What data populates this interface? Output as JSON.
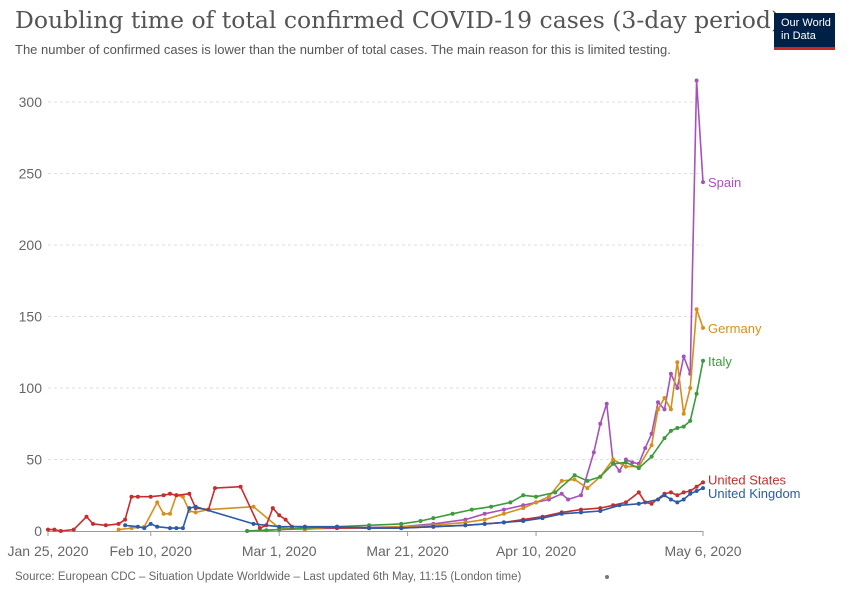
{
  "header": {
    "title": "Doubling time of total confirmed COVID-19 cases (3-day period)",
    "subtitle": "The number of confirmed cases is lower than the number of total cases. The main reason for this is limited testing."
  },
  "logo": {
    "line1": "Our World",
    "line2": "in Data"
  },
  "footer": {
    "source": "Source: European CDC – Situation Update Worldwide – Last updated 6th May, 11:15 (London time)"
  },
  "chart_data": {
    "type": "line",
    "x_axis": {
      "min": "2020-01-25",
      "max": "2020-05-06",
      "ticks": [
        {
          "date": "2020-01-25",
          "label": "Jan 25, 2020"
        },
        {
          "date": "2020-02-10",
          "label": "Feb 10, 2020"
        },
        {
          "date": "2020-03-01",
          "label": "Mar 1, 2020"
        },
        {
          "date": "2020-03-21",
          "label": "Mar 21, 2020"
        },
        {
          "date": "2020-04-10",
          "label": "Apr 10, 2020"
        },
        {
          "date": "2020-05-06",
          "label": "May 6, 2020"
        }
      ]
    },
    "y_axis": {
      "min": 0,
      "max": 300,
      "ticks": [
        0,
        50,
        100,
        150,
        200,
        250,
        300
      ]
    },
    "grid": "horizontal dashed",
    "legend": "line-end labels",
    "series": [
      {
        "name": "Spain",
        "color": "#a652ba",
        "points": [
          [
            "2020-02-25",
            0
          ],
          [
            "2020-03-01",
            1
          ],
          [
            "2020-03-05",
            1.5
          ],
          [
            "2020-03-10",
            2
          ],
          [
            "2020-03-15",
            2.5
          ],
          [
            "2020-03-20",
            3
          ],
          [
            "2020-03-25",
            5
          ],
          [
            "2020-03-30",
            8
          ],
          [
            "2020-04-02",
            12
          ],
          [
            "2020-04-05",
            15
          ],
          [
            "2020-04-08",
            18
          ],
          [
            "2020-04-10",
            20
          ],
          [
            "2020-04-12",
            22
          ],
          [
            "2020-04-14",
            26
          ],
          [
            "2020-04-15",
            22
          ],
          [
            "2020-04-17",
            25
          ],
          [
            "2020-04-19",
            55
          ],
          [
            "2020-04-20",
            75
          ],
          [
            "2020-04-21",
            89
          ],
          [
            "2020-04-22",
            48
          ],
          [
            "2020-04-23",
            42
          ],
          [
            "2020-04-24",
            50
          ],
          [
            "2020-04-25",
            48
          ],
          [
            "2020-04-26",
            47
          ],
          [
            "2020-04-27",
            58
          ],
          [
            "2020-04-28",
            68
          ],
          [
            "2020-04-29",
            90
          ],
          [
            "2020-04-30",
            85
          ],
          [
            "2020-05-01",
            110
          ],
          [
            "2020-05-02",
            100
          ],
          [
            "2020-05-03",
            122
          ],
          [
            "2020-05-04",
            110
          ],
          [
            "2020-05-05",
            315
          ],
          [
            "2020-05-06",
            244
          ]
        ]
      },
      {
        "name": "Germany",
        "color": "#d4901e",
        "points": [
          [
            "2020-02-05",
            1
          ],
          [
            "2020-02-07",
            2
          ],
          [
            "2020-02-09",
            3
          ],
          [
            "2020-02-11",
            20
          ],
          [
            "2020-02-12",
            12
          ],
          [
            "2020-02-13",
            12
          ],
          [
            "2020-02-14",
            25
          ],
          [
            "2020-02-15",
            24
          ],
          [
            "2020-02-16",
            14
          ],
          [
            "2020-02-17",
            13
          ],
          [
            "2020-02-19",
            15
          ],
          [
            "2020-02-26",
            17
          ],
          [
            "2020-03-01",
            2
          ],
          [
            "2020-03-05",
            1
          ],
          [
            "2020-03-10",
            3
          ],
          [
            "2020-03-15",
            2
          ],
          [
            "2020-03-20",
            3
          ],
          [
            "2020-03-25",
            4
          ],
          [
            "2020-03-30",
            6
          ],
          [
            "2020-04-02",
            8
          ],
          [
            "2020-04-05",
            12
          ],
          [
            "2020-04-08",
            16
          ],
          [
            "2020-04-10",
            20
          ],
          [
            "2020-04-12",
            24
          ],
          [
            "2020-04-14",
            35
          ],
          [
            "2020-04-16",
            36
          ],
          [
            "2020-04-18",
            30
          ],
          [
            "2020-04-20",
            38
          ],
          [
            "2020-04-22",
            50
          ],
          [
            "2020-04-24",
            45
          ],
          [
            "2020-04-26",
            45
          ],
          [
            "2020-04-28",
            60
          ],
          [
            "2020-04-29",
            85
          ],
          [
            "2020-04-30",
            93
          ],
          [
            "2020-05-01",
            85
          ],
          [
            "2020-05-02",
            118
          ],
          [
            "2020-05-03",
            82
          ],
          [
            "2020-05-04",
            100
          ],
          [
            "2020-05-05",
            155
          ],
          [
            "2020-05-06",
            142
          ]
        ]
      },
      {
        "name": "Italy",
        "color": "#3c9b3c",
        "points": [
          [
            "2020-02-25",
            0
          ],
          [
            "2020-02-28",
            0.5
          ],
          [
            "2020-03-01",
            1
          ],
          [
            "2020-03-05",
            2
          ],
          [
            "2020-03-10",
            3
          ],
          [
            "2020-03-15",
            4
          ],
          [
            "2020-03-20",
            5
          ],
          [
            "2020-03-23",
            7
          ],
          [
            "2020-03-25",
            9
          ],
          [
            "2020-03-28",
            12
          ],
          [
            "2020-03-31",
            15
          ],
          [
            "2020-04-03",
            17
          ],
          [
            "2020-04-06",
            20
          ],
          [
            "2020-04-08",
            25
          ],
          [
            "2020-04-10",
            24
          ],
          [
            "2020-04-13",
            27
          ],
          [
            "2020-04-16",
            39
          ],
          [
            "2020-04-18",
            35
          ],
          [
            "2020-04-20",
            38
          ],
          [
            "2020-04-22",
            47
          ],
          [
            "2020-04-24",
            48
          ],
          [
            "2020-04-26",
            44
          ],
          [
            "2020-04-28",
            52
          ],
          [
            "2020-04-30",
            65
          ],
          [
            "2020-05-01",
            70
          ],
          [
            "2020-05-02",
            72
          ],
          [
            "2020-05-03",
            73
          ],
          [
            "2020-05-04",
            77
          ],
          [
            "2020-05-05",
            96
          ],
          [
            "2020-05-06",
            119
          ]
        ]
      },
      {
        "name": "United States",
        "color": "#c42e2e",
        "points": [
          [
            "2020-01-25",
            1
          ],
          [
            "2020-01-26",
            1
          ],
          [
            "2020-01-27",
            0
          ],
          [
            "2020-01-29",
            1
          ],
          [
            "2020-01-31",
            10
          ],
          [
            "2020-02-01",
            5
          ],
          [
            "2020-02-03",
            4
          ],
          [
            "2020-02-05",
            5
          ],
          [
            "2020-02-06",
            8
          ],
          [
            "2020-02-07",
            24
          ],
          [
            "2020-02-08",
            24
          ],
          [
            "2020-02-10",
            24
          ],
          [
            "2020-02-12",
            25
          ],
          [
            "2020-02-13",
            26
          ],
          [
            "2020-02-14",
            25
          ],
          [
            "2020-02-16",
            26
          ],
          [
            "2020-02-17",
            16
          ],
          [
            "2020-02-19",
            15
          ],
          [
            "2020-02-20",
            30
          ],
          [
            "2020-02-24",
            31
          ],
          [
            "2020-02-27",
            2
          ],
          [
            "2020-02-28",
            4
          ],
          [
            "2020-02-29",
            16
          ],
          [
            "2020-03-01",
            11
          ],
          [
            "2020-03-02",
            8
          ],
          [
            "2020-03-03",
            3
          ],
          [
            "2020-03-05",
            3
          ],
          [
            "2020-03-10",
            2
          ],
          [
            "2020-03-15",
            2
          ],
          [
            "2020-03-20",
            2
          ],
          [
            "2020-03-25",
            3
          ],
          [
            "2020-03-30",
            4
          ],
          [
            "2020-04-02",
            5
          ],
          [
            "2020-04-05",
            6
          ],
          [
            "2020-04-08",
            8
          ],
          [
            "2020-04-11",
            10
          ],
          [
            "2020-04-14",
            13
          ],
          [
            "2020-04-17",
            15
          ],
          [
            "2020-04-20",
            16
          ],
          [
            "2020-04-22",
            18
          ],
          [
            "2020-04-24",
            20
          ],
          [
            "2020-04-26",
            27
          ],
          [
            "2020-04-27",
            20
          ],
          [
            "2020-04-28",
            19
          ],
          [
            "2020-04-30",
            26
          ],
          [
            "2020-05-01",
            27
          ],
          [
            "2020-05-02",
            25
          ],
          [
            "2020-05-03",
            27
          ],
          [
            "2020-05-04",
            28
          ],
          [
            "2020-05-05",
            31
          ],
          [
            "2020-05-06",
            34
          ]
        ]
      },
      {
        "name": "United Kingdom",
        "color": "#2a5aa8",
        "points": [
          [
            "2020-02-06",
            4
          ],
          [
            "2020-02-08",
            3
          ],
          [
            "2020-02-09",
            2
          ],
          [
            "2020-02-10",
            5
          ],
          [
            "2020-02-11",
            3
          ],
          [
            "2020-02-13",
            2
          ],
          [
            "2020-02-14",
            2
          ],
          [
            "2020-02-15",
            2
          ],
          [
            "2020-02-16",
            16
          ],
          [
            "2020-02-17",
            17
          ],
          [
            "2020-02-26",
            5
          ],
          [
            "2020-03-01",
            3
          ],
          [
            "2020-03-05",
            3
          ],
          [
            "2020-03-10",
            3
          ],
          [
            "2020-03-15",
            2
          ],
          [
            "2020-03-20",
            2
          ],
          [
            "2020-03-25",
            3
          ],
          [
            "2020-03-30",
            4
          ],
          [
            "2020-04-02",
            5
          ],
          [
            "2020-04-05",
            6
          ],
          [
            "2020-04-08",
            7
          ],
          [
            "2020-04-11",
            9
          ],
          [
            "2020-04-14",
            12
          ],
          [
            "2020-04-17",
            13
          ],
          [
            "2020-04-20",
            14
          ],
          [
            "2020-04-23",
            18
          ],
          [
            "2020-04-26",
            19
          ],
          [
            "2020-04-29",
            22
          ],
          [
            "2020-04-30",
            25
          ],
          [
            "2020-05-01",
            22
          ],
          [
            "2020-05-02",
            20
          ],
          [
            "2020-05-03",
            22
          ],
          [
            "2020-05-04",
            26
          ],
          [
            "2020-05-05",
            28
          ],
          [
            "2020-05-06",
            30
          ]
        ]
      }
    ]
  }
}
